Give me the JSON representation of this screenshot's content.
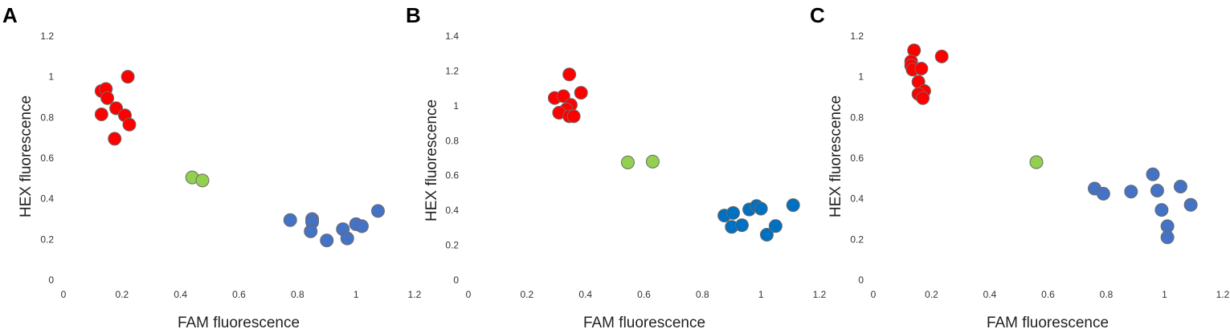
{
  "chart_data": [
    {
      "type": "scatter",
      "panel_label": "A",
      "xlabel": "FAM fluorescence",
      "ylabel": "HEX fluorescence",
      "xlim": [
        0,
        1.2
      ],
      "ylim": [
        0,
        1.2
      ],
      "xticks": [
        "0",
        "0.2",
        "0.4",
        "0.6",
        "0.8",
        "1",
        "1.2"
      ],
      "yticks": [
        "0",
        "0.2",
        "0.4",
        "0.6",
        "0.8",
        "1",
        "1.2"
      ],
      "grid": false,
      "series": [
        {
          "color": "#ff0000",
          "points": [
            [
              0.13,
              0.93
            ],
            [
              0.145,
              0.94
            ],
            [
              0.15,
              0.895
            ],
            [
              0.22,
              1.0
            ],
            [
              0.18,
              0.845
            ],
            [
              0.21,
              0.81
            ],
            [
              0.13,
              0.815
            ],
            [
              0.225,
              0.765
            ],
            [
              0.175,
              0.695
            ]
          ]
        },
        {
          "color": "#92d050",
          "points": [
            [
              0.44,
              0.505
            ],
            [
              0.475,
              0.49
            ]
          ]
        },
        {
          "color": "#4472c4",
          "points": [
            [
              0.775,
              0.295
            ],
            [
              0.85,
              0.3
            ],
            [
              0.85,
              0.285
            ],
            [
              0.845,
              0.24
            ],
            [
              0.9,
              0.195
            ],
            [
              0.955,
              0.25
            ],
            [
              0.97,
              0.205
            ],
            [
              1.0,
              0.275
            ],
            [
              1.02,
              0.265
            ],
            [
              1.075,
              0.34
            ]
          ]
        }
      ]
    },
    {
      "type": "scatter",
      "panel_label": "B",
      "xlabel": "FAM fluorescence",
      "ylabel": "HEX fluorescence",
      "xlim": [
        0,
        1.2
      ],
      "ylim": [
        0,
        1.4
      ],
      "xticks": [
        "0",
        "0.2",
        "0.4",
        "0.6",
        "0.8",
        "1",
        "1.2"
      ],
      "yticks": [
        "0",
        "0.2",
        "0.4",
        "0.6",
        "0.8",
        "1",
        "1.2",
        "1.4"
      ],
      "grid": false,
      "series": [
        {
          "color": "#ff0000",
          "points": [
            [
              0.345,
              1.18
            ],
            [
              0.385,
              1.075
            ],
            [
              0.295,
              1.045
            ],
            [
              0.325,
              1.055
            ],
            [
              0.35,
              1.005
            ],
            [
              0.335,
              0.98
            ],
            [
              0.31,
              0.96
            ],
            [
              0.345,
              0.94
            ],
            [
              0.36,
              0.94
            ]
          ]
        },
        {
          "color": "#92d050",
          "points": [
            [
              0.545,
              0.675
            ],
            [
              0.63,
              0.68
            ]
          ]
        },
        {
          "color": "#0070c0",
          "points": [
            [
              0.875,
              0.37
            ],
            [
              0.905,
              0.385
            ],
            [
              0.9,
              0.305
            ],
            [
              0.935,
              0.315
            ],
            [
              0.96,
              0.405
            ],
            [
              0.985,
              0.425
            ],
            [
              1.0,
              0.41
            ],
            [
              1.02,
              0.26
            ],
            [
              1.05,
              0.31
            ],
            [
              1.11,
              0.43
            ]
          ]
        }
      ]
    },
    {
      "type": "scatter",
      "panel_label": "C",
      "xlabel": "FAM fluorescence",
      "ylabel": "HEX fluorescence",
      "xlim": [
        0,
        1.2
      ],
      "ylim": [
        0,
        1.2
      ],
      "xticks": [
        "0",
        "0.2",
        "0.4",
        "0.6",
        "0.8",
        "1",
        "1.2"
      ],
      "yticks": [
        "0",
        "0.2",
        "0.4",
        "0.6",
        "0.8",
        "1",
        "1.2"
      ],
      "grid": false,
      "series": [
        {
          "color": "#ff0000",
          "points": [
            [
              0.14,
              1.13
            ],
            [
              0.13,
              1.075
            ],
            [
              0.13,
              1.055
            ],
            [
              0.135,
              1.035
            ],
            [
              0.165,
              1.04
            ],
            [
              0.235,
              1.1
            ],
            [
              0.155,
              0.975
            ],
            [
              0.175,
              0.93
            ],
            [
              0.155,
              0.915
            ],
            [
              0.17,
              0.895
            ]
          ]
        },
        {
          "color": "#92d050",
          "points": [
            [
              0.56,
              0.58
            ]
          ]
        },
        {
          "color": "#4472c4",
          "points": [
            [
              0.76,
              0.45
            ],
            [
              0.79,
              0.425
            ],
            [
              0.885,
              0.435
            ],
            [
              0.96,
              0.52
            ],
            [
              0.975,
              0.44
            ],
            [
              1.055,
              0.46
            ],
            [
              0.99,
              0.345
            ],
            [
              1.09,
              0.37
            ],
            [
              1.01,
              0.265
            ],
            [
              1.01,
              0.21
            ]
          ]
        }
      ]
    }
  ]
}
